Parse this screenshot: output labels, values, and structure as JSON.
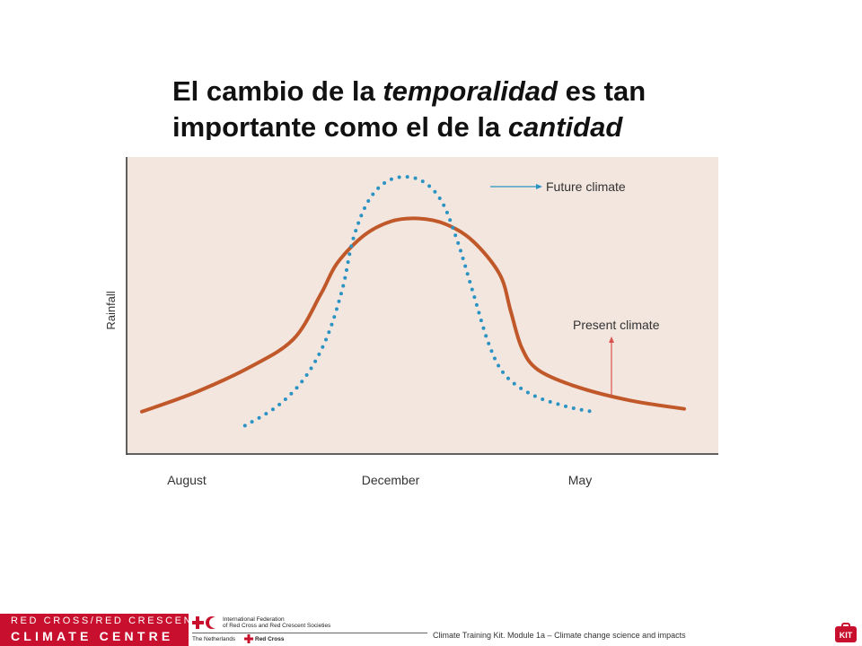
{
  "title": {
    "part1": "El cambio de la ",
    "italic1": "temporalidad",
    "part2": " es tan importante como el de la ",
    "italic2": "cantidad"
  },
  "chart_data": {
    "type": "line",
    "xlabel": "",
    "ylabel": "Rainfall",
    "x_tick_labels": [
      "August",
      "December",
      "May"
    ],
    "grid": false,
    "colors": {
      "present": "#c0582a",
      "future": "#2b93c4",
      "background": "#f2e6df"
    },
    "series": [
      {
        "name": "Present climate",
        "style": "solid",
        "points": [
          [
            0,
            0.1
          ],
          [
            0.1,
            0.17
          ],
          [
            0.2,
            0.26
          ],
          [
            0.28,
            0.36
          ],
          [
            0.33,
            0.52
          ],
          [
            0.36,
            0.63
          ],
          [
            0.41,
            0.73
          ],
          [
            0.46,
            0.78
          ],
          [
            0.51,
            0.79
          ],
          [
            0.56,
            0.77
          ],
          [
            0.61,
            0.71
          ],
          [
            0.66,
            0.59
          ],
          [
            0.68,
            0.46
          ],
          [
            0.7,
            0.33
          ],
          [
            0.73,
            0.25
          ],
          [
            0.8,
            0.19
          ],
          [
            0.9,
            0.14
          ],
          [
            1.0,
            0.11
          ]
        ]
      },
      {
        "name": "Future climate",
        "style": "dotted",
        "points": [
          [
            0.19,
            0.05
          ],
          [
            0.25,
            0.12
          ],
          [
            0.3,
            0.22
          ],
          [
            0.34,
            0.36
          ],
          [
            0.37,
            0.54
          ],
          [
            0.39,
            0.72
          ],
          [
            0.42,
            0.86
          ],
          [
            0.46,
            0.93
          ],
          [
            0.51,
            0.93
          ],
          [
            0.55,
            0.86
          ],
          [
            0.58,
            0.72
          ],
          [
            0.61,
            0.53
          ],
          [
            0.64,
            0.34
          ],
          [
            0.67,
            0.23
          ],
          [
            0.72,
            0.16
          ],
          [
            0.78,
            0.12
          ],
          [
            0.83,
            0.1
          ]
        ]
      }
    ],
    "annotations": [
      {
        "text": "Future climate",
        "series": "Future climate"
      },
      {
        "text": "Present climate",
        "series": "Present climate"
      }
    ]
  },
  "footer": {
    "logo_line1": "RED CROSS/RED CRESCENT",
    "logo_line2": "CLIMATE CENTRE",
    "ifrc_line1": "International Federation",
    "ifrc_line2": "of Red Cross and Red Crescent Societies",
    "nl_text": "The Netherlands",
    "nl_redcross": "Red Cross",
    "caption": "Climate Training Kit. Module 1a –  Climate change science and impacts",
    "kit_label": "KIT"
  }
}
